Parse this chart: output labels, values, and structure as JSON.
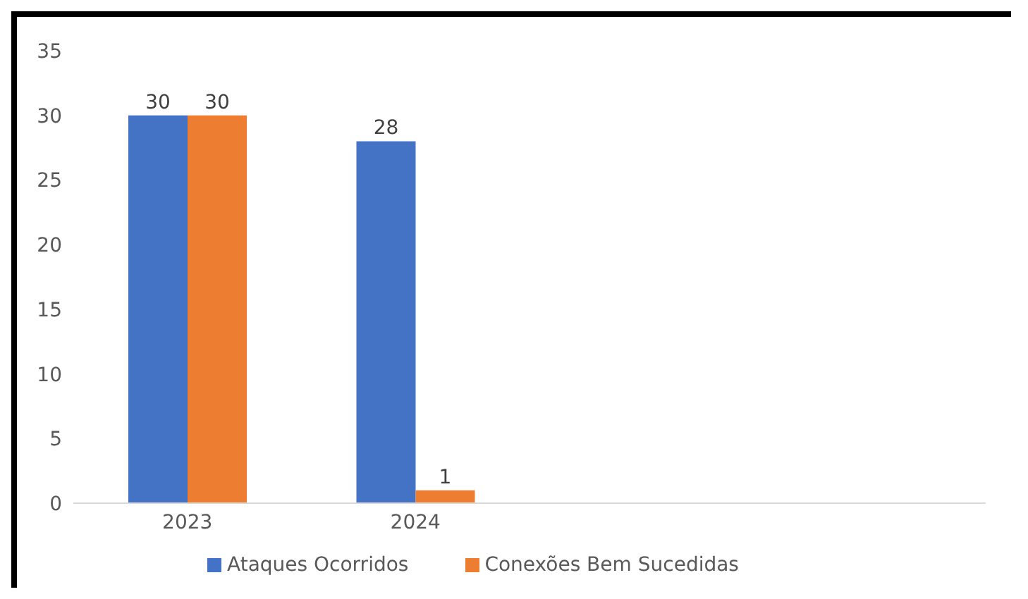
{
  "chart_data": {
    "type": "bar",
    "categories": [
      "2023",
      "2024",
      null,
      null
    ],
    "series": [
      {
        "name": "Ataques Ocorridos",
        "color": "#4472c4",
        "values": [
          30,
          28,
          null,
          null
        ]
      },
      {
        "name": "Conexões Bem Sucedidas",
        "color": "#ed7d31",
        "values": [
          30,
          1,
          null,
          null
        ]
      }
    ],
    "ylim": [
      0,
      35
    ],
    "yticks": [
      0,
      5,
      10,
      15,
      20,
      25,
      30,
      35
    ],
    "grid": false,
    "legend": "bottom",
    "data_labels": true
  }
}
